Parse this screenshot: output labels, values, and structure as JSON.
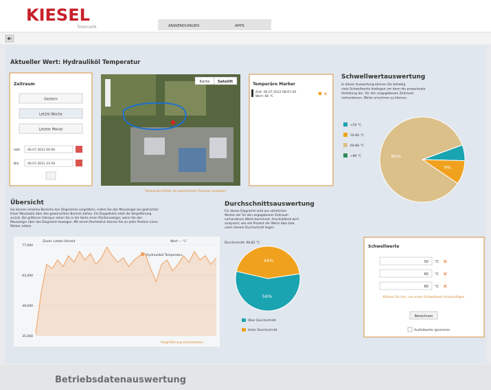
{
  "header": {
    "logo": "KIESEL",
    "tagline": "Telematik",
    "nav": [
      "ANWENDUNGEN",
      "APPS"
    ]
  },
  "page_title": "Aktueller Wert: Hydrauliköl Temperatur",
  "zeitraum": {
    "title": "Zeitraum",
    "buttons": [
      "Gestern",
      "Letzte Woche",
      "Letzter Monat"
    ],
    "from_label": "von",
    "from": "06.07.2012 00:00",
    "to_label": "bis",
    "to": "06.07.2012 23:59"
  },
  "map": {
    "buttons": [
      "Karte",
      "Satellit"
    ],
    "caption": "Temperaturfühler als gezeichnete Fahrspur anzeigen"
  },
  "marker": {
    "title": "Temporäre Marker",
    "time": "Zeit: 06.07.2012 08:07:44",
    "value": "Wert: 66 °C"
  },
  "threshold_chart": {
    "type": "pie",
    "title": "Schwellwertauswertung",
    "description": [
      "In dieser Auswertung können Sie beliebig",
      "viele Schwellwerte festlegen um dann die prozentuale",
      "Verteilung der, für den angegebenen Zeitraum",
      "vorhandenen, Werte errechnen zu können."
    ],
    "categories": [
      "<50 °C",
      "50-60 °C",
      "60-80 °C",
      ">80 °C"
    ],
    "values": [
      6,
      9,
      85,
      0
    ],
    "value_labels": [
      null,
      "9%",
      "85%",
      null
    ],
    "colors": [
      "#1aa3b0",
      "#f0a21e",
      "#dcc08a",
      "#2e8b57"
    ]
  },
  "overview": {
    "title": "Übersicht",
    "description": [
      "Sie können einzelne Bereiche des Diagramms vergrößern, indem Sie den Mauszeiger bei gedrückter",
      "linker Maustaste über den gewünschten Bereich ziehen. Ein Doppelklick setzt die Vergrößerung",
      "zurück. Bei größeren Fahrspur sehen Sie in der Karte einen Positionszeiger, wenn Sie den",
      "Mauszeiger über das Diagramm bewegen. Mit einem Rechtsklick können Sie an jeder Position einen",
      "Marker setzen."
    ],
    "chart": {
      "type": "area",
      "zoom_label": "Zoom: Letzte Uhrzeit",
      "value_label": "Wert: -- °C",
      "legend": "Hydrauliköl Temperatur",
      "reset": "Vergrößerung zurücksetzen",
      "color": "#f0a060",
      "values": [
        36000,
        55000,
        68000,
        66000,
        70000,
        67000,
        72000,
        69000,
        74000,
        70000,
        73000,
        68000,
        71000,
        76000,
        72000,
        69000,
        71000,
        67000,
        70000,
        72000,
        73000,
        66000,
        60000,
        68000,
        70000,
        65000,
        68000,
        72000,
        69000,
        74000,
        70000,
        72000,
        68000,
        71000
      ],
      "ylim": [
        35000,
        77000
      ],
      "yticks": [
        {
          "value": 35000,
          "label": "35,000"
        },
        {
          "value": 49000,
          "label": "49,000"
        },
        {
          "value": 63000,
          "label": "63,000"
        },
        {
          "value": 77000,
          "label": "77,000"
        }
      ],
      "grid": true
    }
  },
  "average_chart": {
    "type": "pie",
    "title": "Durchschnittsauswertung",
    "description": [
      "Für dieses Diagramm wird aus sämtlichen",
      "Werten der für den angegebenen Zeitraum",
      "vorhandenen Werte berechnet. Anschließend wird",
      "analysiert, wie viel Prozent der Werte über bzw.",
      "unter diesem Durchschnitt liegen."
    ],
    "average": "Durchschnitt: 66,82 °C",
    "categories": [
      "Über Durchschnitt",
      "Unter Durchschnitt"
    ],
    "values": [
      56,
      44
    ],
    "value_labels": [
      "56%",
      "44%"
    ],
    "colors": [
      "#1aa3b0",
      "#f0a21e"
    ]
  },
  "schwellwerte": {
    "title": "Schwellwerte",
    "values": [
      50,
      60,
      80
    ],
    "unit": "°C",
    "add_link": "Klicken Sie hier, um einen Schwellwert hinzuzufügen",
    "button": "Berechnen",
    "checkbox": "Ausfallwerte ignorieren"
  },
  "caption": "Betriebsdatenauswertung"
}
